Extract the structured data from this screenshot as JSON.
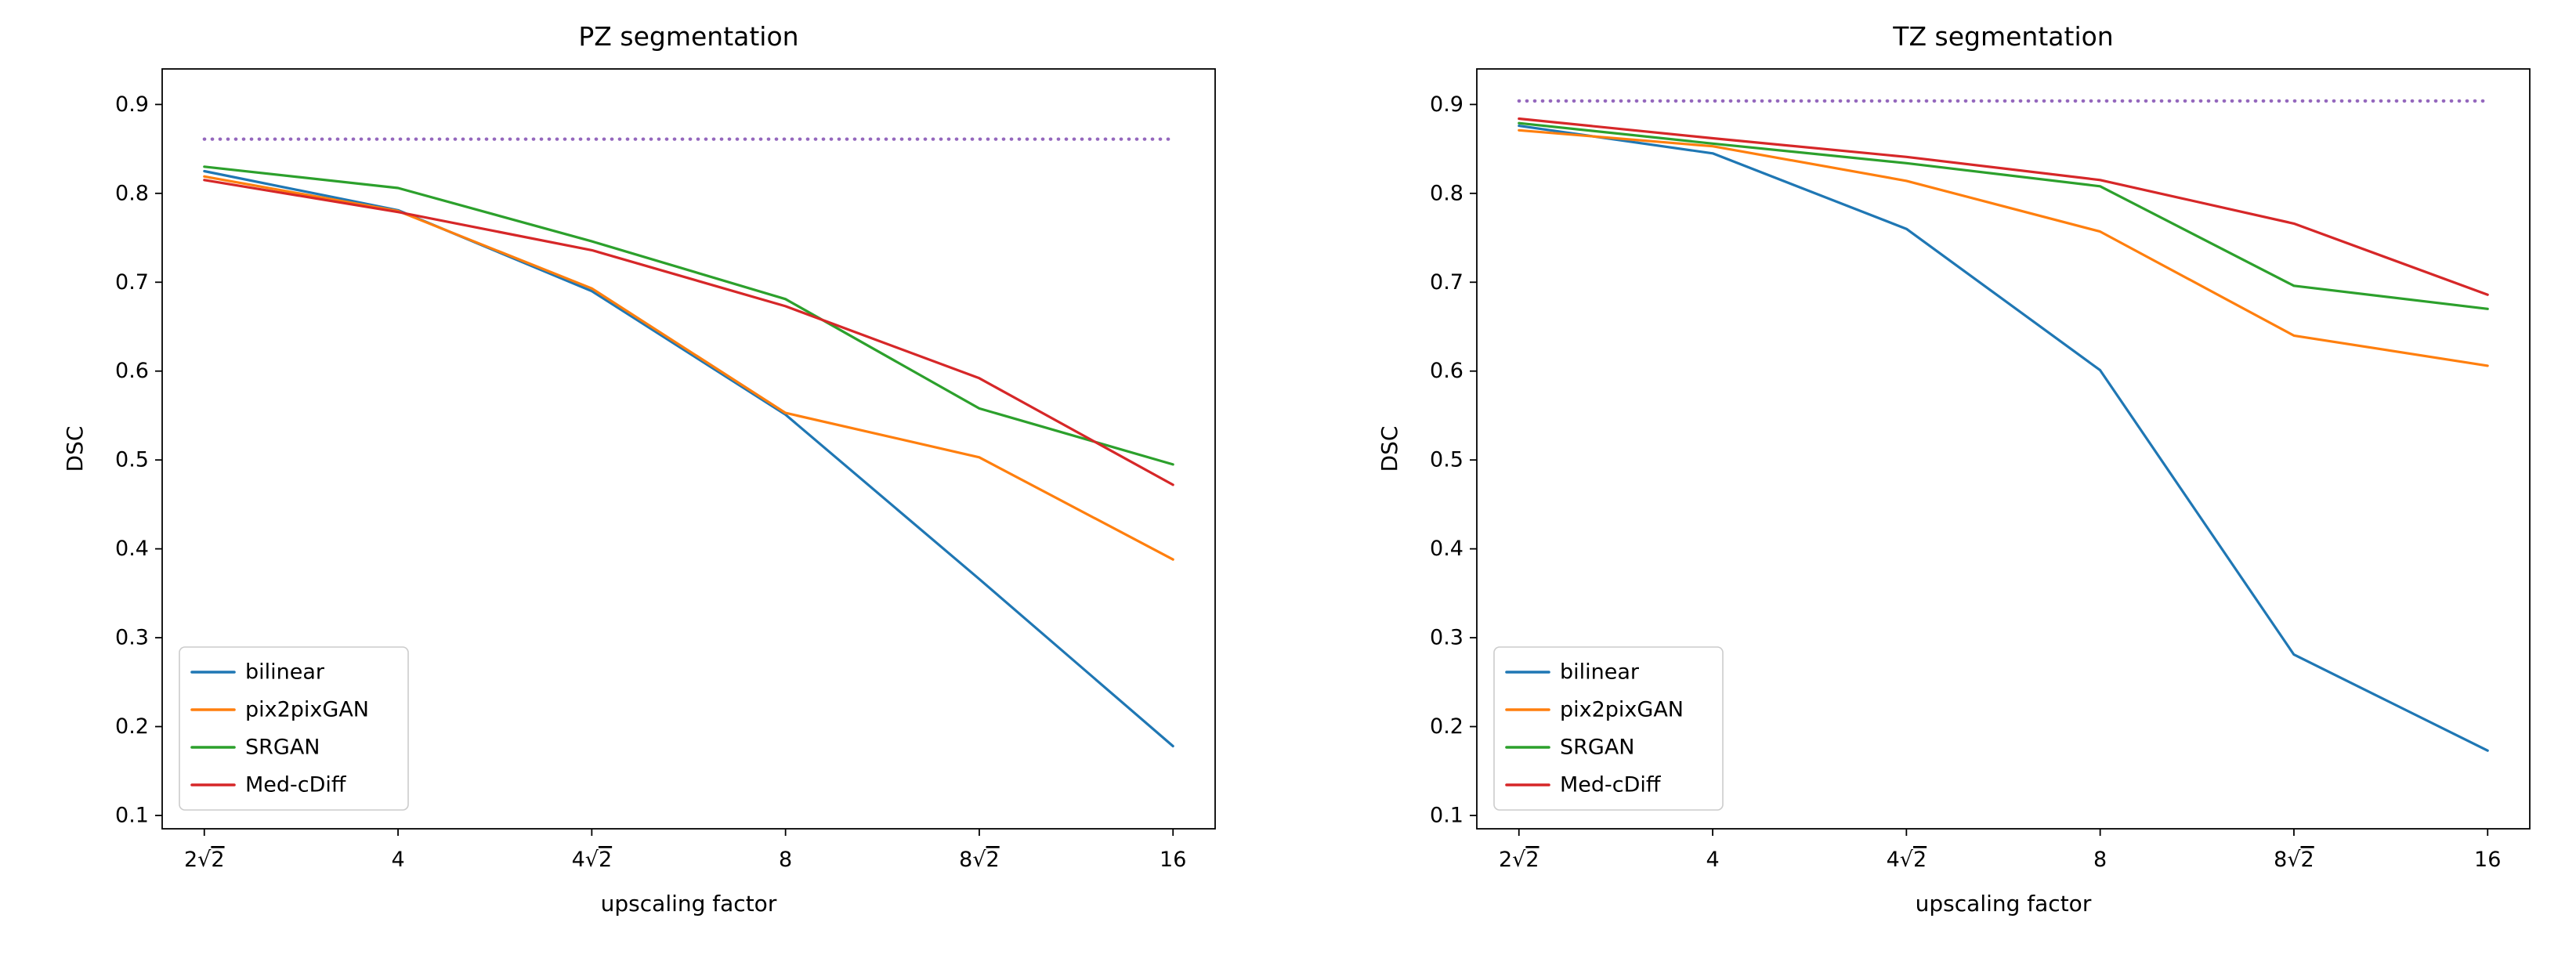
{
  "page": {
    "background": "#ffffff"
  },
  "chart_data": [
    {
      "type": "line",
      "title": "PZ segmentation",
      "xlabel": "upscaling factor",
      "ylabel": "DSC",
      "categories": [
        "2√2",
        "4",
        "4√2",
        "8",
        "8√2",
        "16"
      ],
      "yticks": [
        0.1,
        0.2,
        0.3,
        0.4,
        0.5,
        0.6,
        0.7,
        0.8,
        0.9
      ],
      "ylim": [
        0.085,
        0.94
      ],
      "grid": false,
      "legend_position": "lower left",
      "reference_line": {
        "value": 0.861,
        "color": "#9467bd",
        "style": "dotted"
      },
      "series": [
        {
          "name": "bilinear",
          "color": "#1f77b4",
          "values": [
            0.825,
            0.781,
            0.69,
            0.551,
            0.366,
            0.178
          ]
        },
        {
          "name": "pix2pixGAN",
          "color": "#ff7f0e",
          "values": [
            0.819,
            0.78,
            0.693,
            0.553,
            0.503,
            0.388
          ]
        },
        {
          "name": "SRGAN",
          "color": "#2ca02c",
          "values": [
            0.83,
            0.806,
            0.746,
            0.681,
            0.558,
            0.495
          ]
        },
        {
          "name": "Med-cDiff",
          "color": "#d62728",
          "values": [
            0.815,
            0.779,
            0.736,
            0.673,
            0.592,
            0.472
          ]
        }
      ]
    },
    {
      "type": "line",
      "title": "TZ segmentation",
      "xlabel": "upscaling factor",
      "ylabel": "DSC",
      "categories": [
        "2√2",
        "4",
        "4√2",
        "8",
        "8√2",
        "16"
      ],
      "yticks": [
        0.1,
        0.2,
        0.3,
        0.4,
        0.5,
        0.6,
        0.7,
        0.8,
        0.9
      ],
      "ylim": [
        0.085,
        0.94
      ],
      "grid": false,
      "legend_position": "lower left",
      "reference_line": {
        "value": 0.904,
        "color": "#9467bd",
        "style": "dotted"
      },
      "series": [
        {
          "name": "bilinear",
          "color": "#1f77b4",
          "values": [
            0.876,
            0.845,
            0.76,
            0.601,
            0.281,
            0.173
          ]
        },
        {
          "name": "pix2pixGAN",
          "color": "#ff7f0e",
          "values": [
            0.871,
            0.853,
            0.814,
            0.757,
            0.64,
            0.606
          ]
        },
        {
          "name": "SRGAN",
          "color": "#2ca02c",
          "values": [
            0.879,
            0.856,
            0.834,
            0.808,
            0.696,
            0.67
          ]
        },
        {
          "name": "Med-cDiff",
          "color": "#d62728",
          "values": [
            0.884,
            0.862,
            0.841,
            0.815,
            0.766,
            0.686
          ]
        }
      ]
    }
  ],
  "style": {
    "text_color": "#000000",
    "spine_color": "#000000",
    "legend_border_color": "#cccccc"
  }
}
